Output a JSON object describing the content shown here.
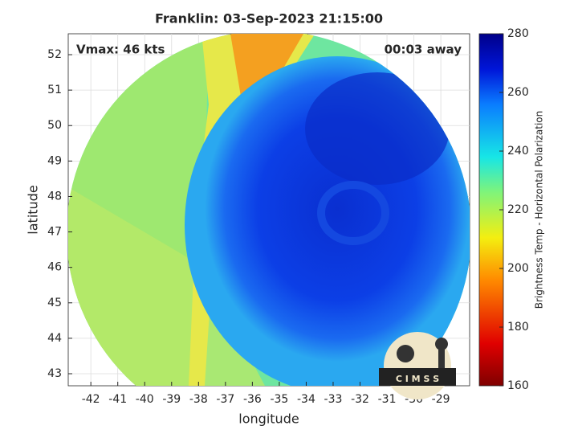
{
  "chart_data": {
    "type": "image",
    "title": "Franklin: 03-Sep-2023 21:15:00",
    "annotations": [
      "Vmax: 46 kts",
      "00:03 away"
    ],
    "xlabel": "longitude",
    "ylabel": "latitude",
    "xlim": [
      -42.84,
      -27.93
    ],
    "ylim": [
      42.66,
      52.59
    ],
    "xticks": [
      -42,
      -41,
      -40,
      -39,
      -38,
      -37,
      -36,
      -35,
      -34,
      -33,
      -32,
      -31,
      -30,
      -29
    ],
    "yticks": [
      43,
      44,
      45,
      46,
      47,
      48,
      49,
      50,
      51,
      52
    ],
    "grid": true,
    "colorbar": {
      "label": "Brightness Temp - Horizontal Polarization",
      "lim": [
        160,
        280
      ],
      "ticks": [
        160,
        180,
        200,
        220,
        240,
        260,
        280
      ]
    },
    "logo": "C I M S S"
  }
}
